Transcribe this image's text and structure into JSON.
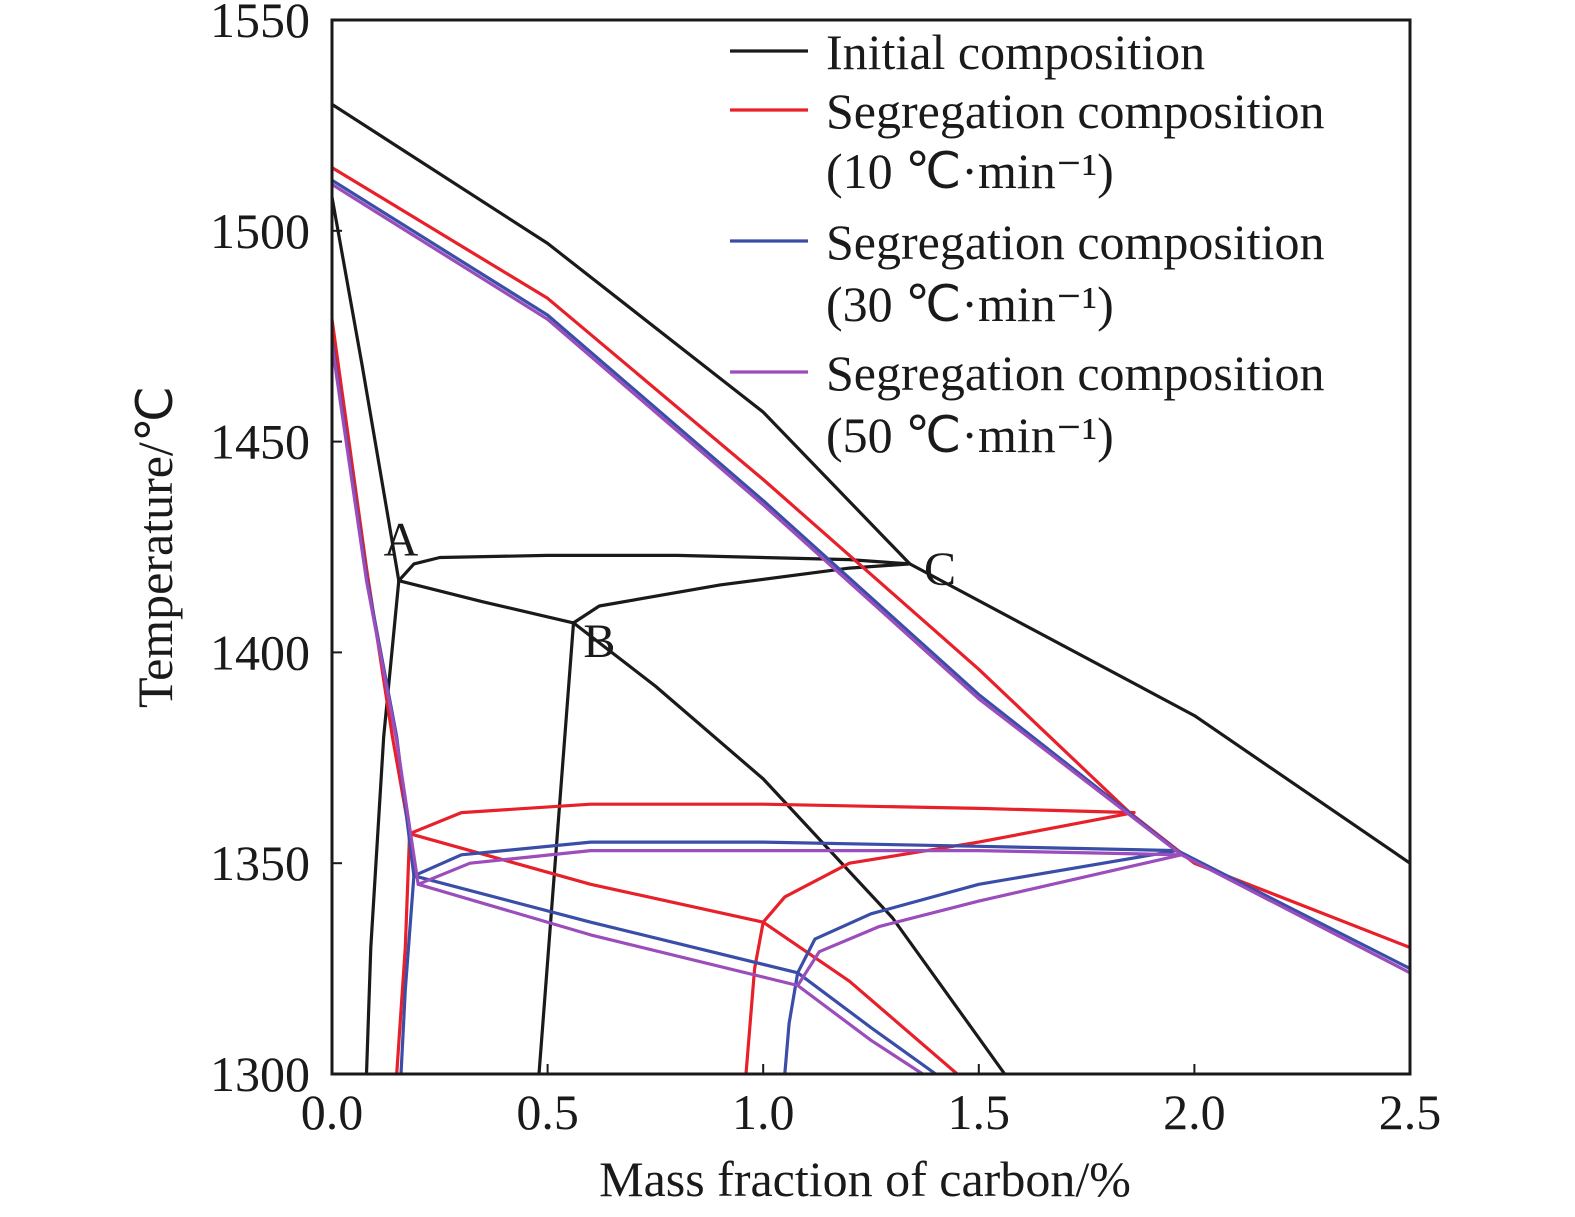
{
  "chart_data": {
    "type": "line",
    "title": "",
    "xlabel": "Mass fraction of carbon/%",
    "ylabel": "Temperature/℃",
    "xlim": [
      0.0,
      2.5
    ],
    "ylim": [
      1300,
      1550
    ],
    "xticks": [
      "0.0",
      "0.5",
      "1.0",
      "1.5",
      "2.0",
      "2.5"
    ],
    "yticks": [
      "1300",
      "1350",
      "1400",
      "1450",
      "1500",
      "1550"
    ],
    "grid": false,
    "legend_position": "top-right",
    "legend": [
      {
        "line1": "Initial composition",
        "line2": "",
        "color": "#1a1a1a"
      },
      {
        "line1": "Segregation composition",
        "line2": "(10 ℃·min⁻¹)",
        "color": "#e8202a"
      },
      {
        "line1": "Segregation composition",
        "line2": "(30 ℃·min⁻¹)",
        "color": "#3a4ea8"
      },
      {
        "line1": "Segregation composition",
        "line2": "(50 ℃·min⁻¹)",
        "color": "#9b4dbb"
      }
    ],
    "annotations": [
      {
        "text": "A",
        "x": 0.16,
        "y": 1427
      },
      {
        "text": "B",
        "x": 0.62,
        "y": 1403
      },
      {
        "text": "C",
        "x": 1.41,
        "y": 1420
      }
    ],
    "series": [
      {
        "name": "Initial composition",
        "color": "#1a1a1a",
        "lines": [
          [
            [
              0.0,
              1530
            ],
            [
              0.5,
              1497
            ],
            [
              1.0,
              1457
            ],
            [
              1.34,
              1421
            ],
            [
              2.0,
              1385
            ],
            [
              2.5,
              1350
            ]
          ],
          [
            [
              0.0,
              1508
            ],
            [
              0.07,
              1468
            ],
            [
              0.13,
              1432
            ],
            [
              0.155,
              1417
            ]
          ],
          [
            [
              0.155,
              1417
            ],
            [
              0.19,
              1421
            ],
            [
              0.25,
              1422.5
            ],
            [
              0.5,
              1423
            ],
            [
              0.8,
              1423
            ],
            [
              1.2,
              1422
            ],
            [
              1.34,
              1421
            ]
          ],
          [
            [
              0.155,
              1417
            ],
            [
              0.35,
              1412
            ],
            [
              0.56,
              1407
            ]
          ],
          [
            [
              0.56,
              1407
            ],
            [
              0.62,
              1411
            ],
            [
              0.9,
              1416
            ],
            [
              1.2,
              1420
            ],
            [
              1.34,
              1421
            ]
          ],
          [
            [
              0.56,
              1407
            ],
            [
              0.75,
              1392
            ],
            [
              1.0,
              1370
            ],
            [
              1.3,
              1337
            ],
            [
              1.56,
              1300
            ]
          ],
          [
            [
              0.155,
              1417
            ],
            [
              0.12,
              1380
            ],
            [
              0.09,
              1330
            ],
            [
              0.08,
              1300
            ]
          ],
          [
            [
              0.56,
              1407
            ],
            [
              0.54,
              1380
            ],
            [
              0.51,
              1340
            ],
            [
              0.48,
              1300
            ]
          ]
        ]
      },
      {
        "name": "Segregation composition (10 ℃·min⁻¹)",
        "color": "#e8202a",
        "lines": [
          [
            [
              0.0,
              1515
            ],
            [
              0.5,
              1484
            ],
            [
              1.0,
              1441
            ],
            [
              1.5,
              1396
            ],
            [
              1.85,
              1362
            ],
            [
              2.0,
              1350
            ],
            [
              2.5,
              1330
            ]
          ],
          [
            [
              0.0,
              1479
            ],
            [
              0.08,
              1420
            ],
            [
              0.14,
              1380
            ],
            [
              0.18,
              1357
            ]
          ],
          [
            [
              0.18,
              1357
            ],
            [
              0.3,
              1362
            ],
            [
              0.6,
              1364
            ],
            [
              1.0,
              1364
            ],
            [
              1.5,
              1363
            ],
            [
              1.86,
              1362
            ]
          ],
          [
            [
              0.18,
              1357
            ],
            [
              0.6,
              1345
            ],
            [
              1.0,
              1336
            ]
          ],
          [
            [
              1.0,
              1336
            ],
            [
              1.05,
              1342
            ],
            [
              1.2,
              1350
            ],
            [
              1.5,
              1355
            ],
            [
              1.86,
              1362
            ]
          ],
          [
            [
              1.0,
              1336
            ],
            [
              1.2,
              1322
            ],
            [
              1.45,
              1300
            ]
          ],
          [
            [
              1.0,
              1336
            ],
            [
              0.98,
              1325
            ],
            [
              0.96,
              1300
            ]
          ],
          [
            [
              0.18,
              1357
            ],
            [
              0.17,
              1330
            ],
            [
              0.15,
              1300
            ]
          ]
        ]
      },
      {
        "name": "Segregation composition (30 ℃·min⁻¹)",
        "color": "#3a4ea8",
        "lines": [
          [
            [
              0.0,
              1512
            ],
            [
              0.5,
              1480
            ],
            [
              1.0,
              1436
            ],
            [
              1.5,
              1390
            ],
            [
              1.96,
              1353
            ],
            [
              2.5,
              1325
            ]
          ],
          [
            [
              0.0,
              1474
            ],
            [
              0.08,
              1418
            ],
            [
              0.15,
              1380
            ],
            [
              0.19,
              1347
            ]
          ],
          [
            [
              0.19,
              1347
            ],
            [
              0.3,
              1352
            ],
            [
              0.6,
              1355
            ],
            [
              1.0,
              1355
            ],
            [
              1.5,
              1354
            ],
            [
              1.96,
              1353
            ]
          ],
          [
            [
              0.19,
              1347
            ],
            [
              0.6,
              1336
            ],
            [
              1.08,
              1324
            ]
          ],
          [
            [
              1.08,
              1324
            ],
            [
              1.12,
              1332
            ],
            [
              1.25,
              1338
            ],
            [
              1.5,
              1345
            ],
            [
              1.96,
              1353
            ]
          ],
          [
            [
              1.08,
              1324
            ],
            [
              1.25,
              1311
            ],
            [
              1.4,
              1300
            ]
          ],
          [
            [
              1.08,
              1324
            ],
            [
              1.06,
              1312
            ],
            [
              1.05,
              1300
            ]
          ],
          [
            [
              0.19,
              1347
            ],
            [
              0.17,
              1320
            ],
            [
              0.16,
              1300
            ]
          ]
        ]
      },
      {
        "name": "Segregation composition (50 ℃·min⁻¹)",
        "color": "#9b4dbb",
        "lines": [
          [
            [
              0.0,
              1511
            ],
            [
              0.5,
              1479
            ],
            [
              1.0,
              1435
            ],
            [
              1.5,
              1389
            ],
            [
              1.97,
              1352
            ],
            [
              2.5,
              1324
            ]
          ],
          [
            [
              0.0,
              1473
            ],
            [
              0.08,
              1417
            ],
            [
              0.15,
              1379
            ],
            [
              0.2,
              1345
            ]
          ],
          [
            [
              0.2,
              1345
            ],
            [
              0.32,
              1350
            ],
            [
              0.6,
              1353
            ],
            [
              1.0,
              1353
            ],
            [
              1.5,
              1353
            ],
            [
              1.97,
              1352
            ]
          ],
          [
            [
              0.2,
              1345
            ],
            [
              0.6,
              1333
            ],
            [
              1.08,
              1321
            ]
          ],
          [
            [
              1.08,
              1321
            ],
            [
              1.13,
              1329
            ],
            [
              1.27,
              1335
            ],
            [
              1.5,
              1341
            ],
            [
              1.97,
              1352
            ]
          ],
          [
            [
              1.08,
              1321
            ],
            [
              1.25,
              1308
            ],
            [
              1.37,
              1300
            ]
          ]
        ]
      }
    ]
  }
}
